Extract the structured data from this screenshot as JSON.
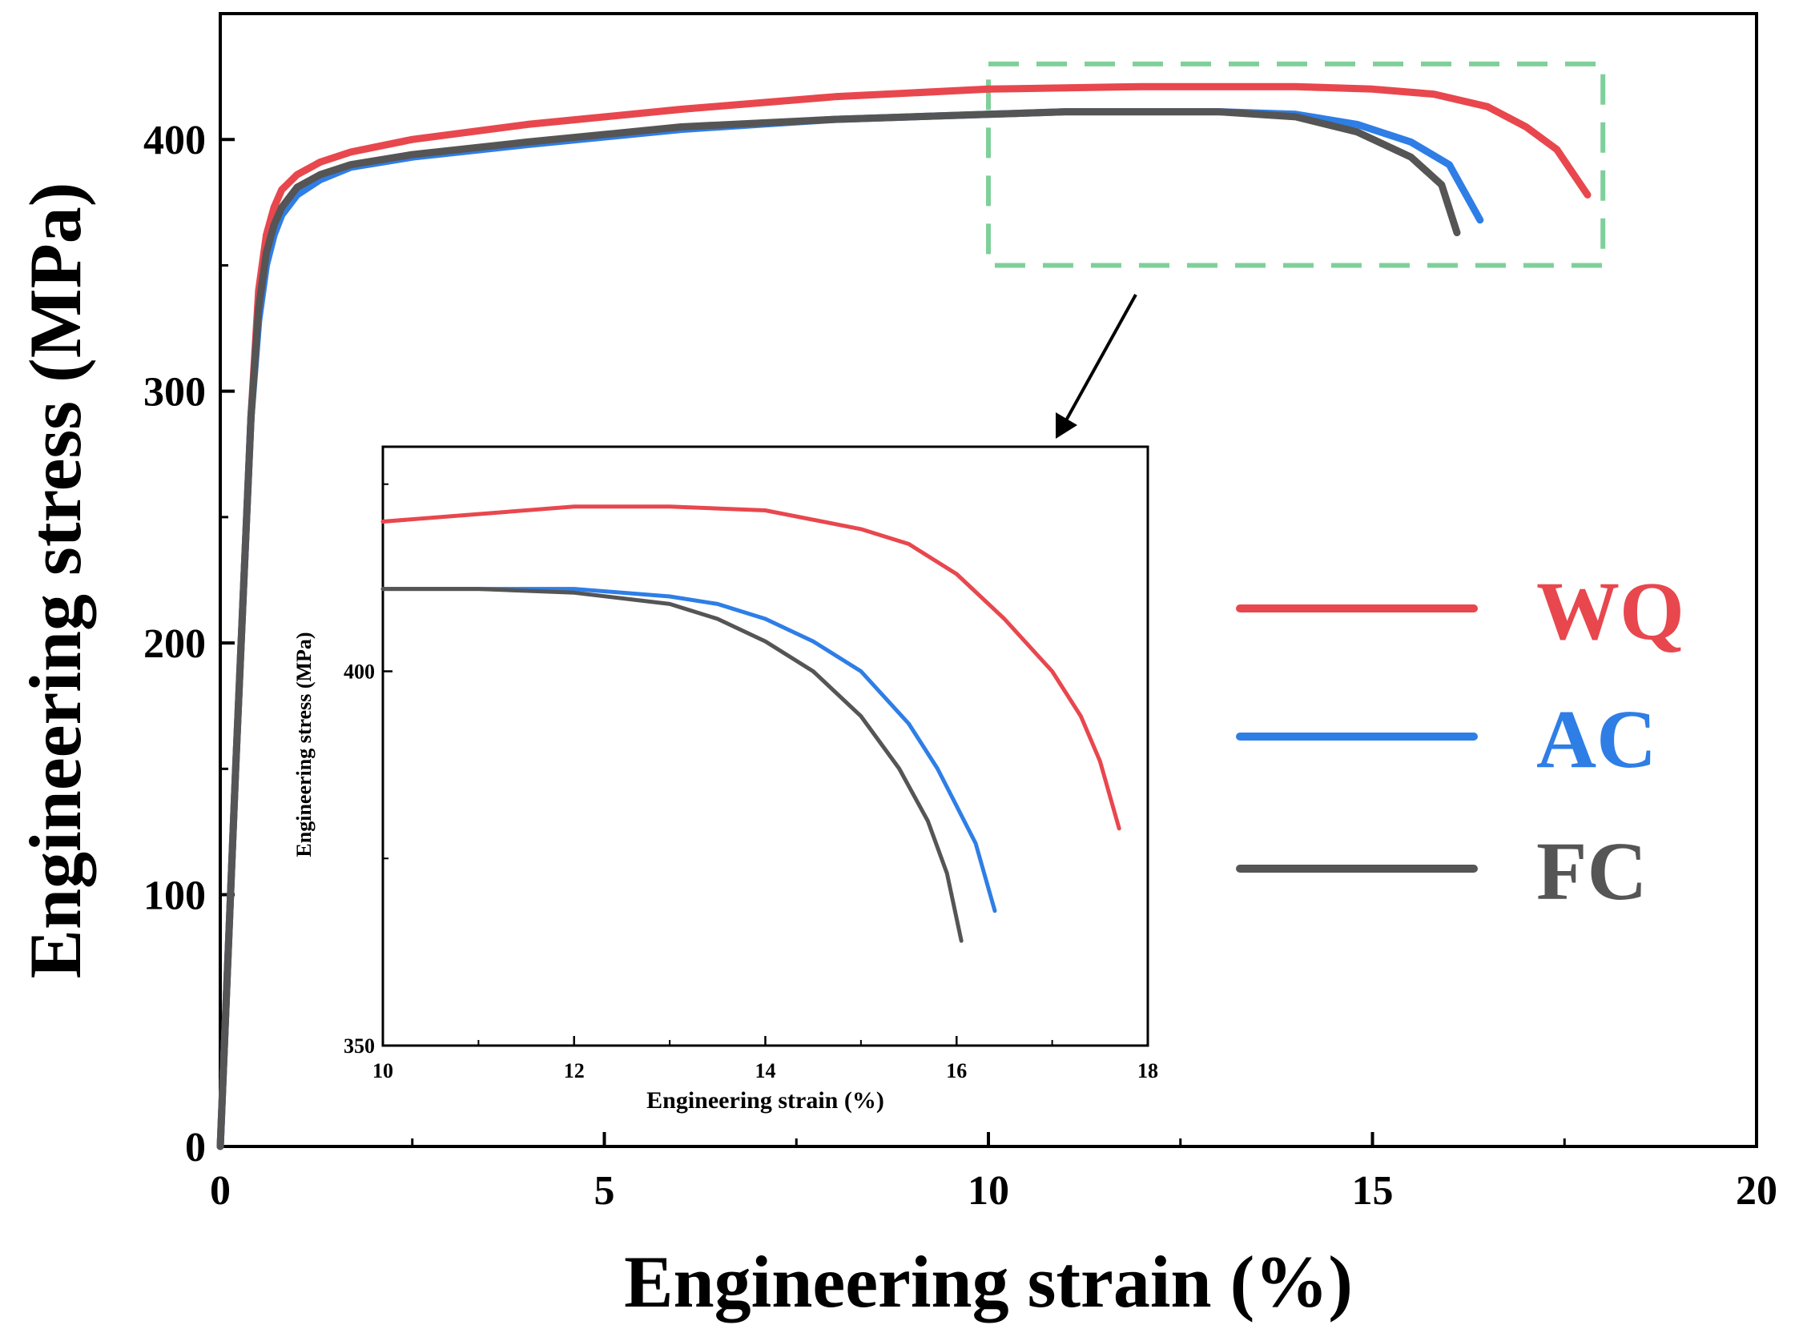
{
  "chart_data": [
    {
      "id": "main",
      "type": "line",
      "xlabel": "Engineering strain (%)",
      "ylabel": "Engineering stress (MPa)",
      "xlim": [
        0,
        20
      ],
      "ylim": [
        0,
        450
      ],
      "x_ticks": [
        "0",
        "5",
        "10",
        "15",
        "20"
      ],
      "y_ticks": [
        "0",
        "100",
        "200",
        "300",
        "400"
      ],
      "zoom_region": {
        "x": [
          10,
          18
        ],
        "y": [
          350,
          430
        ]
      },
      "colors": {
        "zoom_box": "#7fcf9a"
      },
      "series": [
        {
          "name": "WQ",
          "color": "#e8474e",
          "x": [
            0,
            0.2,
            0.4,
            0.5,
            0.6,
            0.7,
            0.8,
            1.0,
            1.3,
            1.7,
            2.5,
            4,
            6,
            8,
            10,
            12,
            13,
            14,
            15,
            15.8,
            16.5,
            17,
            17.4,
            17.8
          ],
          "y": [
            0,
            150,
            290,
            340,
            362,
            373,
            380,
            386,
            391,
            395,
            400,
            406,
            412,
            417,
            420,
            421,
            421,
            421,
            420,
            418,
            413,
            405,
            396,
            378
          ]
        },
        {
          "name": "AC",
          "color": "#2e7ee6",
          "x": [
            0,
            0.2,
            0.4,
            0.5,
            0.6,
            0.7,
            0.8,
            1.0,
            1.3,
            1.7,
            2.5,
            4,
            6,
            8,
            10,
            11,
            12,
            13,
            14,
            14.8,
            15.5,
            16,
            16.4
          ],
          "y": [
            0,
            150,
            290,
            328,
            350,
            362,
            370,
            378,
            384,
            389,
            393,
            398,
            404,
            408,
            410,
            411,
            411,
            411,
            410,
            406,
            399,
            390,
            368
          ]
        },
        {
          "name": "FC",
          "color": "#555555",
          "x": [
            0,
            0.2,
            0.4,
            0.5,
            0.6,
            0.7,
            0.8,
            1.0,
            1.3,
            1.7,
            2.5,
            4,
            6,
            8,
            10,
            11,
            12,
            13,
            14,
            14.8,
            15.5,
            15.9,
            16.1
          ],
          "y": [
            0,
            150,
            290,
            333,
            355,
            366,
            373,
            381,
            386,
            390,
            394,
            399,
            405,
            408,
            410,
            411,
            411,
            411,
            409,
            403,
            393,
            382,
            363
          ]
        }
      ]
    },
    {
      "id": "inset",
      "type": "line",
      "xlabel": "Engineering strain (%)",
      "ylabel": "Engineering stress (MPa)",
      "xlim": [
        10,
        18
      ],
      "ylim": [
        350,
        430
      ],
      "x_ticks": [
        "10",
        "12",
        "14",
        "16",
        "18"
      ],
      "y_ticks": [
        "350",
        "400"
      ],
      "series": [
        {
          "name": "WQ",
          "color": "#e8474e",
          "x": [
            10,
            11,
            12,
            13,
            14,
            15,
            15.5,
            16,
            16.5,
            17,
            17.3,
            17.5,
            17.7
          ],
          "y": [
            420,
            421,
            422,
            422,
            421.5,
            419,
            417,
            413,
            407,
            400,
            394,
            388,
            379
          ]
        },
        {
          "name": "AC",
          "color": "#2e7ee6",
          "x": [
            10,
            11,
            12,
            13,
            13.5,
            14,
            14.5,
            15,
            15.5,
            15.8,
            16,
            16.2,
            16.4
          ],
          "y": [
            411,
            411,
            411,
            410,
            409,
            407,
            404,
            400,
            393,
            387,
            382,
            377,
            368
          ]
        },
        {
          "name": "FC",
          "color": "#555555",
          "x": [
            10,
            11,
            12,
            13,
            13.5,
            14,
            14.5,
            15,
            15.4,
            15.7,
            15.9,
            16.05
          ],
          "y": [
            411,
            411,
            410.5,
            409,
            407,
            404,
            400,
            394,
            387,
            380,
            373,
            364
          ]
        }
      ]
    }
  ],
  "legend": {
    "placement": "right",
    "items": [
      {
        "label": "WQ",
        "color": "#e8474e"
      },
      {
        "label": "AC",
        "color": "#2e7ee6"
      },
      {
        "label": "FC",
        "color": "#555555"
      }
    ]
  }
}
